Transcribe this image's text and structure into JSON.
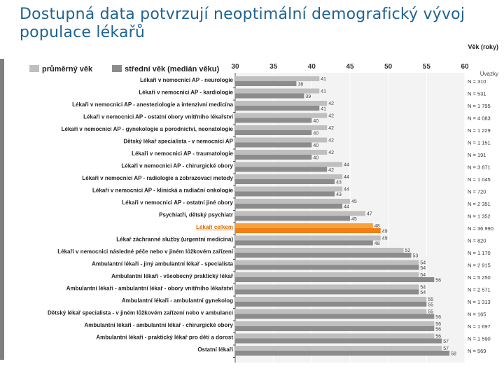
{
  "title": "Dostupná data potvrzují neoptimální demografický vývoj populace lékařů",
  "colors": {
    "mean": "#bfbfbf",
    "median": "#8c8c8c",
    "highlight_mean": "#f7a03c",
    "highlight_median": "#f07f14",
    "title": "#1f6391"
  },
  "chart_data": {
    "type": "bar",
    "orientation": "horizontal",
    "axis_title": "Věk (roky)",
    "count_header": "Úvazky",
    "x_ticks": [
      30,
      35,
      40,
      45,
      50,
      55,
      60
    ],
    "xlim": [
      30,
      60
    ],
    "highlight_category": "Lékaři celkem",
    "series": [
      {
        "name": "průměrný věk",
        "values": [
          41,
          41,
          42,
          42,
          42,
          42,
          42,
          44,
          44,
          44,
          45,
          47,
          48,
          49,
          52,
          54,
          54,
          54,
          55,
          55,
          56,
          56,
          57
        ]
      },
      {
        "name": "střední věk (medián věku)",
        "values": [
          38,
          39,
          41,
          40,
          40,
          40,
          40,
          42,
          43,
          43,
          44,
          45,
          49,
          48,
          53,
          54,
          56,
          54,
          55,
          56,
          56,
          57,
          58
        ]
      }
    ],
    "categories": [
      "Lékaři v nemocnici AP - neurologie",
      "Lékaři v nemocnici AP - kardiologie",
      "Lékaři v nemocnici AP - anesteziologie a intenzivní medicína",
      "Lékaři v nemocnici AP - ostatní obory vnitřního lékařství",
      "Lékaři v nemocnici AP - gynekologie a porodnictví, neonatologie",
      "Dětský lékař specialista - v nemocnici AP",
      "Lékaři v nemocnici AP - traumatologie",
      "Lékaři v nemocnici AP - chirurgické obory",
      "Lékaři v nemocnici AP - radiologie a zobrazovací metody",
      "Lékaři v nemocnici AP - klinická a radiační onkologie",
      "Lékaři v nemocnici AP - ostatní jiné obory",
      "Psychiatři, dětský psychiatr",
      "Lékaři celkem",
      "Lékař záchranné služby (urgentní medicína)",
      "Lékaři v nemocnici následné péče nebo v jiném lůžkovém zařízení",
      "Ambulantní lékaři - jiný ambulantní lékař - specialista",
      "Ambulantní lékaři - všeobecný praktický lékař",
      "Ambulantní lékaři - ambulantní lékař - obory vnitřního lékařství",
      "Ambulantní lékaři - ambulantní gynekolog",
      "Dětský lékař specialista - v jiném lůžkovém zařízení nebo v ambulanci",
      "Ambulantní lékaři - ambulantní lékař - chirurgické obory",
      "Ambulantní lékaři - praktický lékař pro děti a dorost",
      "Ostatní lékaři"
    ],
    "counts": [
      "N = 310",
      "N = 531",
      "N = 1 795",
      "N = 4 083",
      "N = 1 229",
      "N = 1 151",
      "N = 191",
      "N = 3 871",
      "N = 1 045",
      "N = 720",
      "N = 2 351",
      "N = 1 352",
      "N = 36 990",
      "N = 820",
      "N = 1 170",
      "N = 2 915",
      "N = 5 250",
      "N = 2 571",
      "N = 1 313",
      "N = 165",
      "N = 1 697",
      "N = 1 590",
      "N = 569"
    ]
  }
}
